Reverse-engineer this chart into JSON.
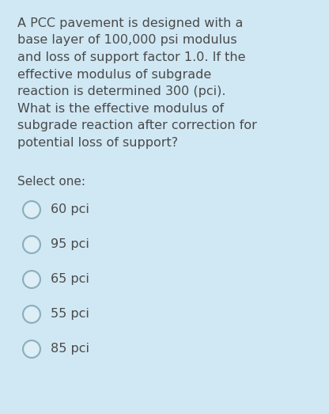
{
  "background_color": "#d0e8f4",
  "text_color": "#4a4a4a",
  "question_lines": [
    "A PCC pavement is designed with a",
    "base layer of 100,000 psi modulus",
    "and loss of support factor 1.0. If the",
    "effective modulus of subgrade",
    "reaction is determined 300 (pci).",
    "What is the effective modulus of",
    "subgrade reaction after correction for",
    "potential loss of support?"
  ],
  "select_label": "Select one:",
  "options": [
    "60 pci",
    "95 pci",
    "65 pci",
    "55 pci",
    "85 pci"
  ],
  "question_fontsize": 11.5,
  "select_fontsize": 11.0,
  "option_fontsize": 11.5,
  "fig_width": 4.16,
  "fig_height": 5.23,
  "dpi": 100,
  "circle_outer_color": "#a0bece",
  "circle_inner_color": "#ddeef6",
  "circle_edge_color": "#8aabb8"
}
